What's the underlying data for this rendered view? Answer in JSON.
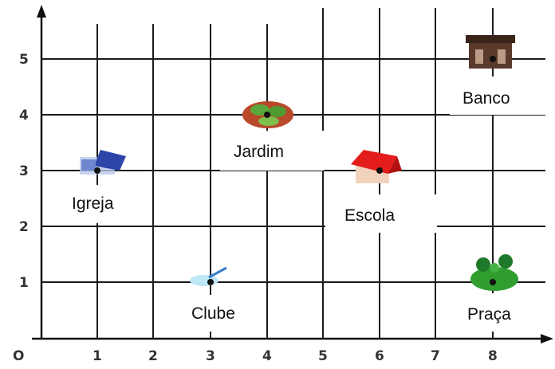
{
  "grid": {
    "origin_label": "O",
    "x_ticks": [
      "1",
      "2",
      "3",
      "4",
      "5",
      "6",
      "7",
      "8"
    ],
    "y_ticks": [
      "1",
      "2",
      "3",
      "4",
      "5"
    ]
  },
  "places": [
    {
      "key": "igreja",
      "label": "Igreja",
      "x": 1,
      "y": 3,
      "icon": "church-icon"
    },
    {
      "key": "clube",
      "label": "Clube",
      "x": 3,
      "y": 1,
      "icon": "pool-icon"
    },
    {
      "key": "jardim",
      "label": "Jardim",
      "x": 4,
      "y": 4,
      "icon": "garden-icon"
    },
    {
      "key": "escola",
      "label": "Escola",
      "x": 6,
      "y": 3,
      "icon": "school-icon"
    },
    {
      "key": "banco",
      "label": "Banco",
      "x": 8,
      "y": 5,
      "icon": "bank-icon"
    },
    {
      "key": "praca",
      "label": "Praça",
      "x": 8,
      "y": 1,
      "icon": "square-trees-icon"
    }
  ]
}
